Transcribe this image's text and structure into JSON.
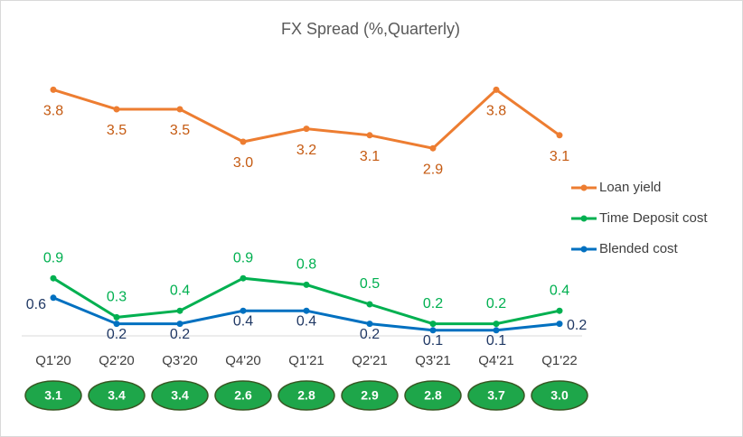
{
  "chart_data": {
    "type": "line",
    "title": "FX Spread (%,Quarterly)",
    "categories": [
      "Q1'20",
      "Q2'20",
      "Q3'20",
      "Q4'20",
      "Q1'21",
      "Q2'21",
      "Q3'21",
      "Q4'21",
      "Q1'22"
    ],
    "ylim": [
      0,
      4.5
    ],
    "series": [
      {
        "name": "Loan yield",
        "color": "#ed7d31",
        "label_color": "#c55a11",
        "values": [
          3.8,
          3.5,
          3.5,
          3.0,
          3.2,
          3.1,
          2.9,
          3.8,
          3.1
        ],
        "value_labels": [
          "3.8",
          "3.5",
          "3.5",
          "3.0",
          "3.2",
          "3.1",
          "2.9",
          "3.8",
          "3.1"
        ]
      },
      {
        "name": "Time Deposit cost",
        "color": "#00b050",
        "label_color": "#00b050",
        "values": [
          0.9,
          0.3,
          0.4,
          0.9,
          0.8,
          0.5,
          0.2,
          0.2,
          0.4
        ]
      },
      {
        "name": "Blended cost",
        "color": "#0070c0",
        "label_color": "#203864",
        "values": [
          0.6,
          0.2,
          0.2,
          0.4,
          0.4,
          0.2,
          0.1,
          0.1,
          0.2
        ]
      }
    ],
    "spread": {
      "color": "#1ea64a",
      "values": [
        3.1,
        3.4,
        3.4,
        2.6,
        2.8,
        2.9,
        2.8,
        3.7,
        3.0
      ],
      "value_labels": [
        "3.1",
        "3.4",
        "3.4",
        "2.6",
        "2.8",
        "2.9",
        "2.8",
        "3.7",
        "3.0"
      ]
    }
  }
}
